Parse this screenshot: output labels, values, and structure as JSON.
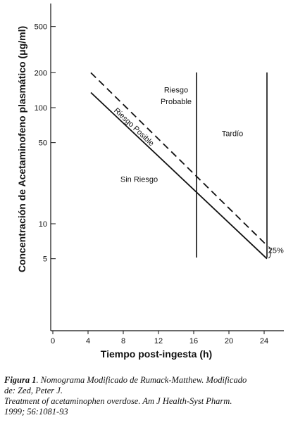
{
  "chart_data": {
    "type": "line",
    "xlabel": "Tiempo post-ingesta (h)",
    "ylabel": "Concentración de Acetaminofeno plasmático (μg/ml)",
    "xlim": [
      0,
      26
    ],
    "ylim": [
      1,
      1000
    ],
    "y_scale": "log",
    "x_ticks": [
      0,
      4,
      8,
      12,
      16,
      20,
      24
    ],
    "y_ticks": [
      5,
      10,
      50,
      100,
      200,
      500
    ],
    "grid": false,
    "series": [
      {
        "name": "Riesgo Posible",
        "style": "solid",
        "x": [
          4,
          24
        ],
        "y": [
          135,
          5
        ]
      },
      {
        "name": "",
        "style": "dashed",
        "x": [
          4,
          24
        ],
        "y": [
          200,
          6.5
        ]
      }
    ],
    "vertical_lines": [
      16,
      24
    ],
    "annotations": [
      {
        "text": "Riesgo",
        "x": 14,
        "y": 135
      },
      {
        "text": "Probable",
        "x": 14,
        "y": 107
      },
      {
        "text": "Tardío",
        "x": 20.4,
        "y": 57
      },
      {
        "text": "Sin Riesgo",
        "x": 9.8,
        "y": 23
      },
      {
        "text": "25%",
        "x": 24.3,
        "y": 5.6
      }
    ]
  },
  "caption": {
    "label": "Figura 1",
    "line1_rest": ". Nomograma Modificado de Rumack-Matthew. Modificado",
    "line2": "de: Zed, Peter J.",
    "line3": "Treatment of acetaminophen overdose. Am J Health-Syst Pharm.",
    "line4": "1999; 56:1081-93"
  },
  "colors": {
    "line": "#111111",
    "background": "#ffffff"
  }
}
